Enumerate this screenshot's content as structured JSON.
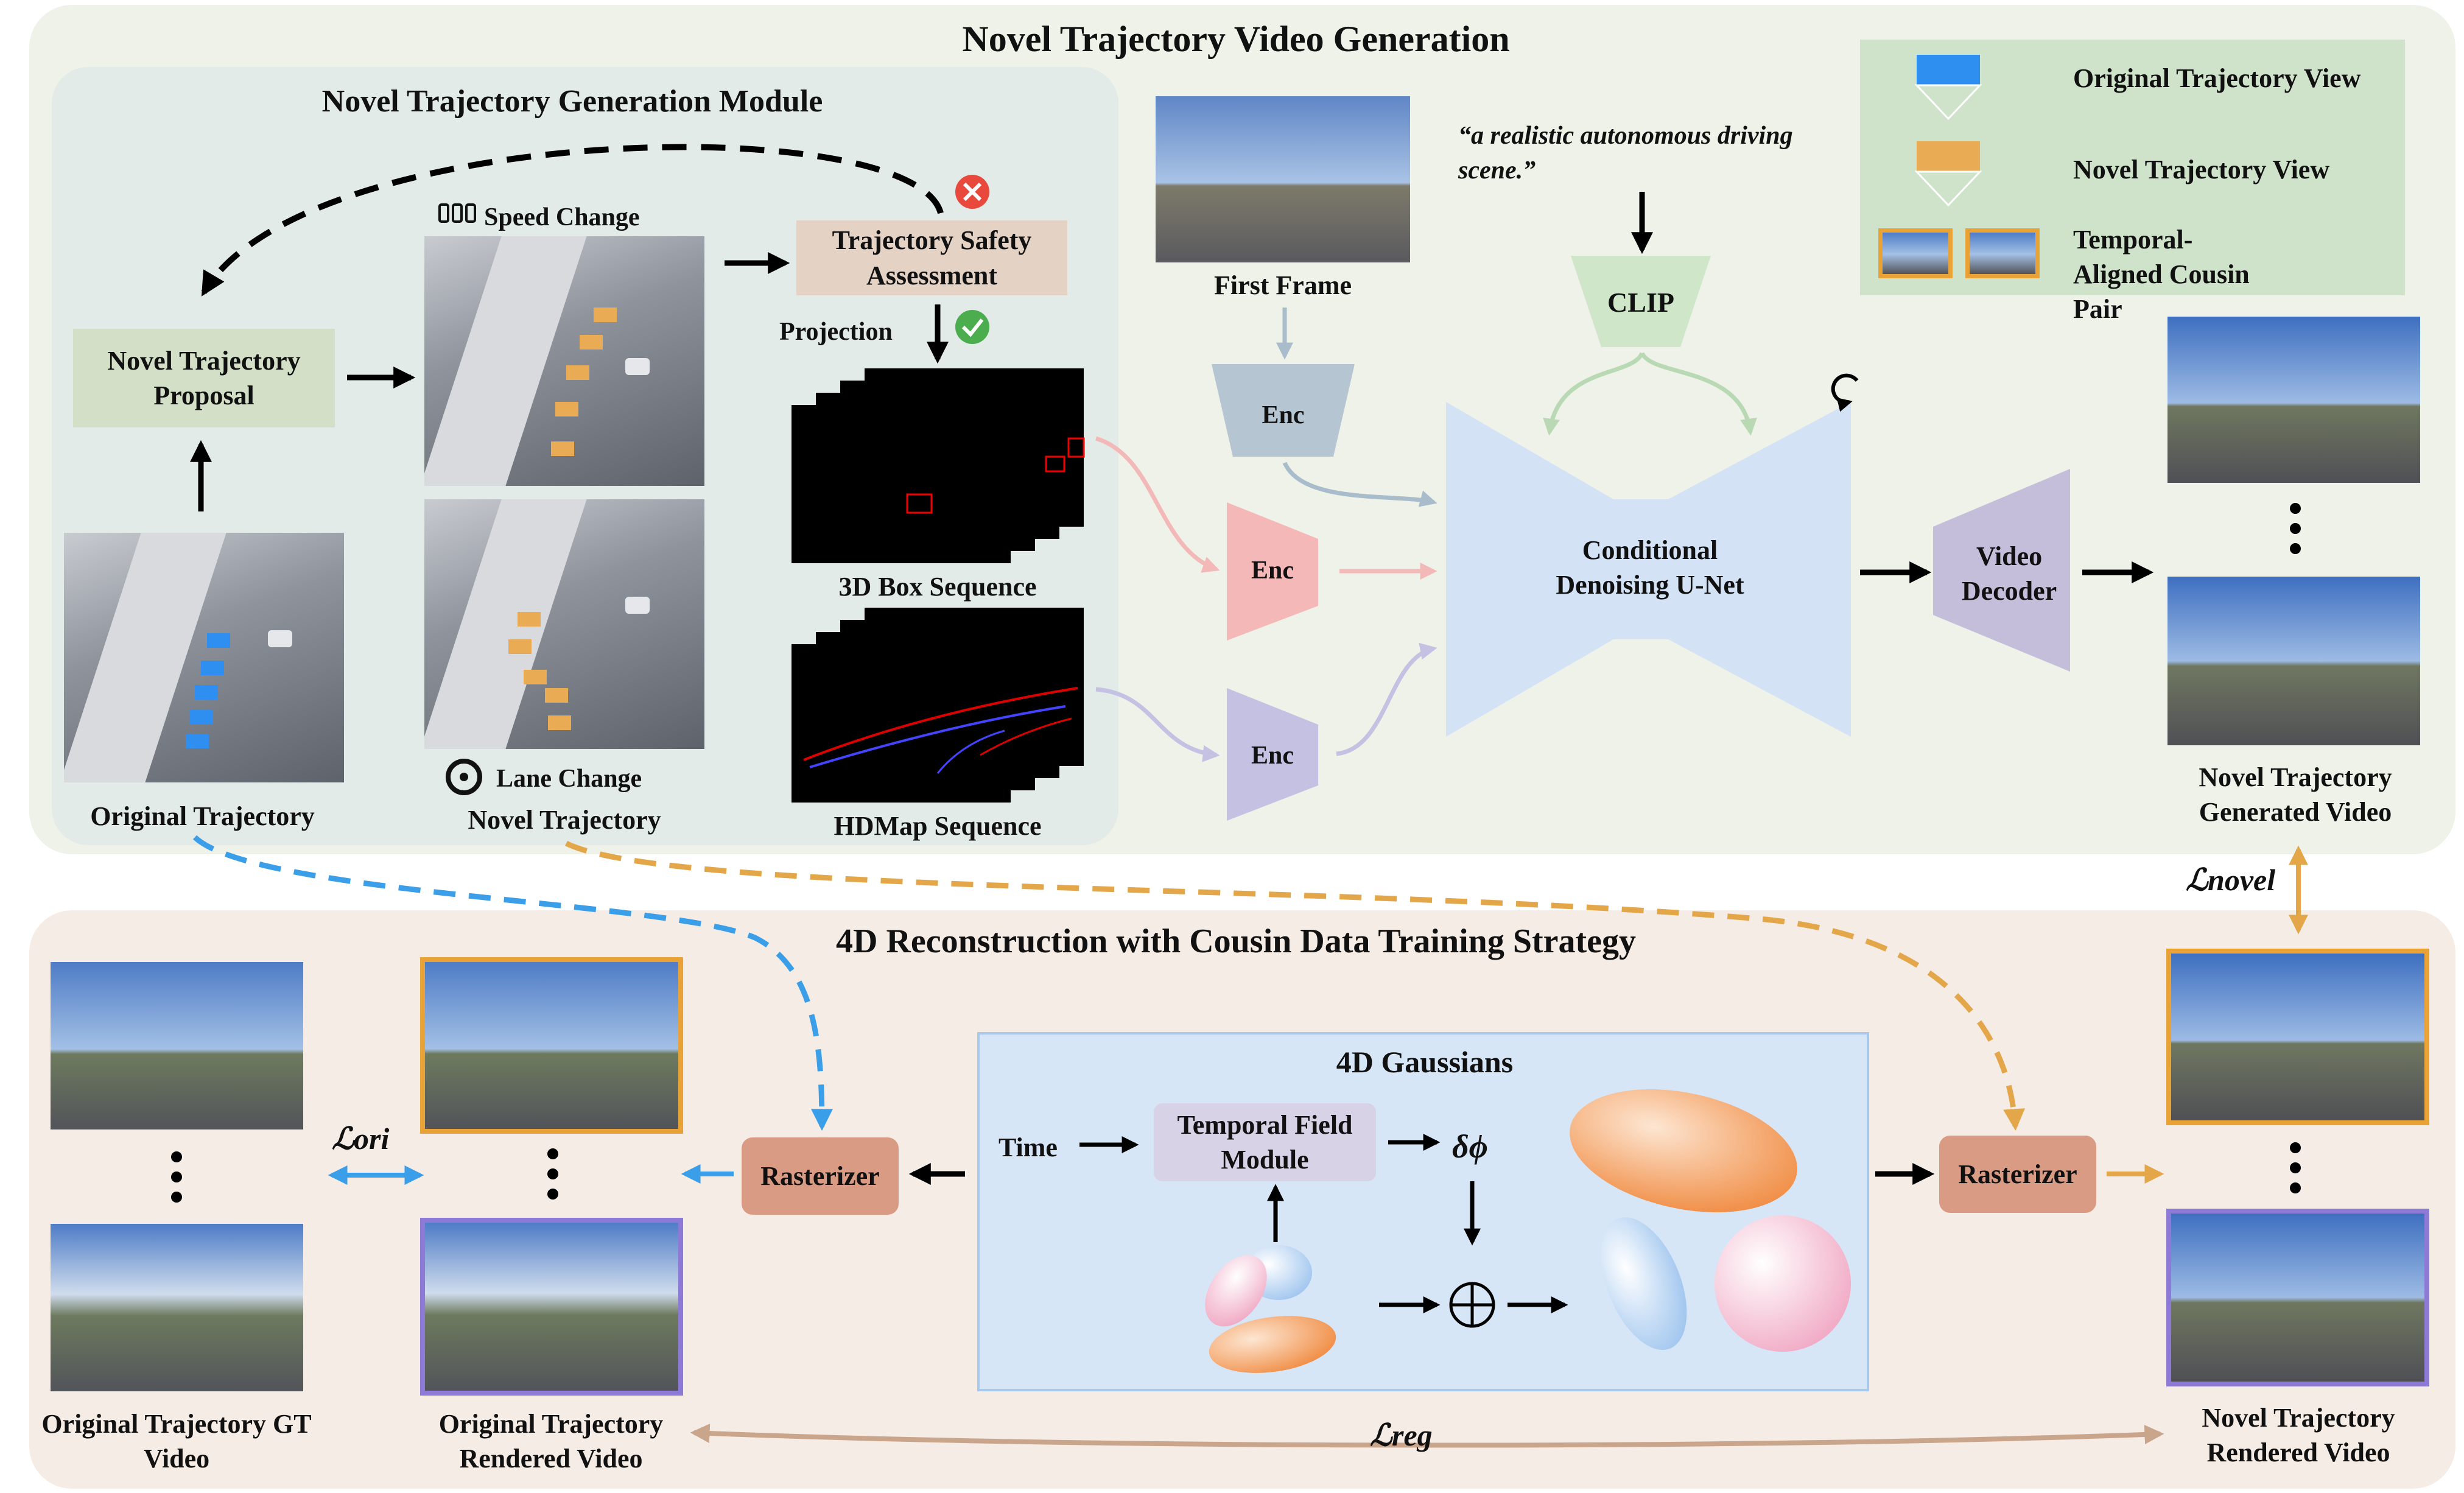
{
  "top": {
    "title": "Novel Trajectory Video Generation",
    "module_title": "Novel Trajectory Generation Module",
    "proposal": "Novel Trajectory Proposal",
    "speed_change": "Speed Change",
    "lane_change": "Lane Change",
    "safety": "Trajectory Safety Assessment",
    "projection": "Projection",
    "box_seq": "3D Box Sequence",
    "hdmap_seq": "HDMap Sequence",
    "original_traj": "Original Trajectory",
    "novel_traj": "Novel Trajectory",
    "first_frame": "First Frame",
    "prompt": "“a realistic autonomous driving scene.”",
    "clip": "CLIP",
    "enc": "Enc",
    "unet": "Conditional Denoising U-Net",
    "decoder": "Video Decoder",
    "generated": "Novel Trajectory Generated Video"
  },
  "legend": {
    "original_view": "Original Trajectory View",
    "novel_view": "Novel Trajectory View",
    "cousin_pair": "Temporal-Aligned Cousin Pair"
  },
  "losses": {
    "novel": "ℒnovel",
    "ori": "ℒori",
    "reg": "ℒreg"
  },
  "bottom": {
    "title": "4D Reconstruction with Cousin Data Training Strategy",
    "gaussians": "4D Gaussians",
    "time": "Time",
    "tfm": "Temporal Field Module",
    "delta": "δϕ",
    "rasterizer": "Rasterizer",
    "gt_video": "Original Trajectory GT Video",
    "ori_rendered": "Original Trajectory Rendered Video",
    "novel_rendered": "Novel Trajectory Rendered Video"
  },
  "colors": {
    "top_bg": "#eef2e8",
    "module_bg": "#e3ebe8",
    "bottom_bg": "#f6ece6",
    "legend_bg": "#cfe3cb",
    "blue_arrow": "#3b9ee8",
    "orange_arrow": "#e3a74a",
    "orange_frame": "#e9a236",
    "purple_frame": "#8d7ad6",
    "rasterizer": "#d99b83",
    "gaussians_bg": "#d6e6f6"
  }
}
